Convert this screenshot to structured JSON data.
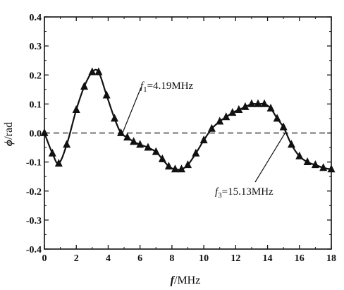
{
  "chart_data": {
    "type": "line",
    "title": "",
    "xlabel": {
      "symbol": "f",
      "unit": "/MHz"
    },
    "ylabel": {
      "symbol": "ϕ",
      "unit": "/rad"
    },
    "xlim": [
      0,
      18
    ],
    "ylim": [
      -0.4,
      0.4
    ],
    "x_ticks": [
      "0",
      "2",
      "4",
      "6",
      "8",
      "10",
      "12",
      "14",
      "16",
      "18"
    ],
    "y_ticks": [
      "0.4",
      "0.3",
      "0.2",
      "0.1",
      "0.0",
      "-0.1",
      "-0.2",
      "-0.3",
      "-0.4"
    ],
    "grid": false,
    "zero_reference_line": {
      "y": 0.0,
      "style": "dashed"
    },
    "series": [
      {
        "marker": "triangle",
        "color": "#111111",
        "x": [
          0.0,
          0.5,
          0.9,
          1.4,
          2.0,
          2.5,
          3.0,
          3.4,
          3.9,
          4.4,
          4.8,
          5.2,
          5.6,
          6.0,
          6.5,
          7.0,
          7.4,
          7.8,
          8.2,
          8.6,
          9.0,
          9.5,
          10.0,
          10.5,
          11.0,
          11.4,
          11.8,
          12.2,
          12.6,
          13.0,
          13.4,
          13.8,
          14.2,
          14.6,
          15.0,
          15.5,
          16.0,
          16.5,
          17.0,
          17.5,
          18.0
        ],
        "y": [
          0.0,
          -0.07,
          -0.105,
          -0.04,
          0.08,
          0.16,
          0.21,
          0.21,
          0.13,
          0.05,
          0.0,
          -0.015,
          -0.03,
          -0.04,
          -0.05,
          -0.065,
          -0.09,
          -0.115,
          -0.125,
          -0.125,
          -0.11,
          -0.07,
          -0.025,
          0.015,
          0.04,
          0.055,
          0.07,
          0.08,
          0.09,
          0.1,
          0.1,
          0.1,
          0.085,
          0.05,
          0.02,
          -0.04,
          -0.08,
          -0.1,
          -0.11,
          -0.12,
          -0.125
        ]
      }
    ],
    "annotations": [
      {
        "symbol": "f",
        "subscript": "1",
        "text": "=4.19MHz",
        "x": 4.9,
        "y": 0.0
      },
      {
        "symbol": "f",
        "subscript": "3",
        "text": "=15.13MHz",
        "x": 15.1,
        "y": 0.0
      }
    ]
  }
}
